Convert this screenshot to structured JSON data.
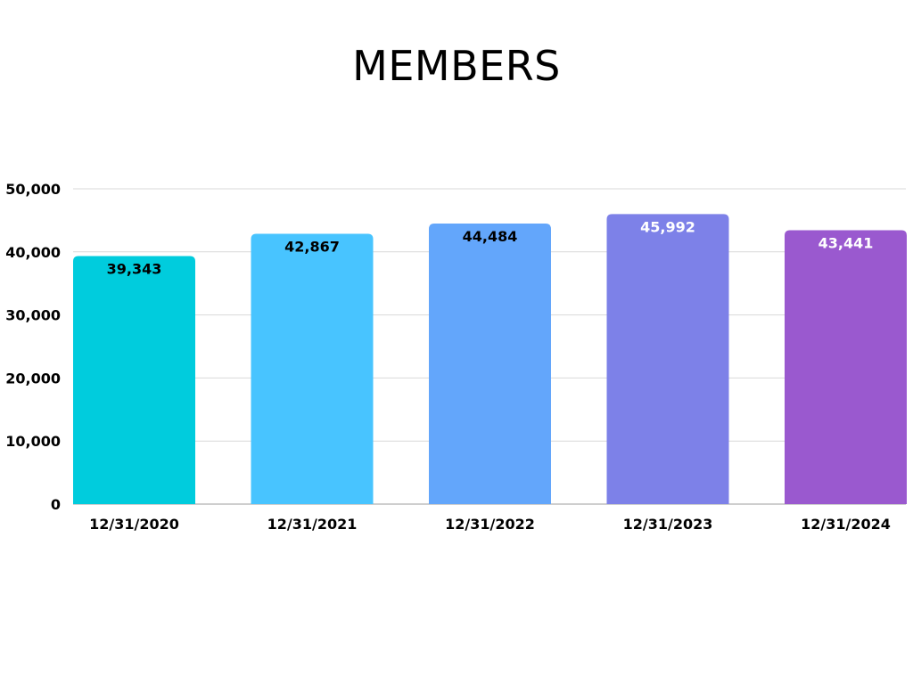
{
  "chart_data": {
    "type": "bar",
    "title": "MEMBERS",
    "categories": [
      "12/31/2020",
      "12/31/2021",
      "12/31/2022",
      "12/31/2023",
      "12/31/2024"
    ],
    "values": [
      39343,
      42867,
      44484,
      45992,
      43441
    ],
    "value_labels": [
      "39,343",
      "42,867",
      "44,484",
      "45,992",
      "43,441"
    ],
    "bar_colors": [
      "#00CCDD",
      "#48C4FF",
      "#63A6FB",
      "#7D81E8",
      "#9A59CF"
    ],
    "value_label_colors": [
      "#000000",
      "#000000",
      "#000000",
      "#ffffff",
      "#ffffff"
    ],
    "y_ticks": [
      0,
      10000,
      20000,
      30000,
      40000,
      50000
    ],
    "y_tick_labels": [
      "0",
      "10,000",
      "20,000",
      "30,000",
      "40,000",
      "50,000"
    ],
    "ylim": [
      0,
      50000
    ],
    "grid": true,
    "grid_color": "#d9d9d9",
    "xlabel": "",
    "ylabel": ""
  }
}
